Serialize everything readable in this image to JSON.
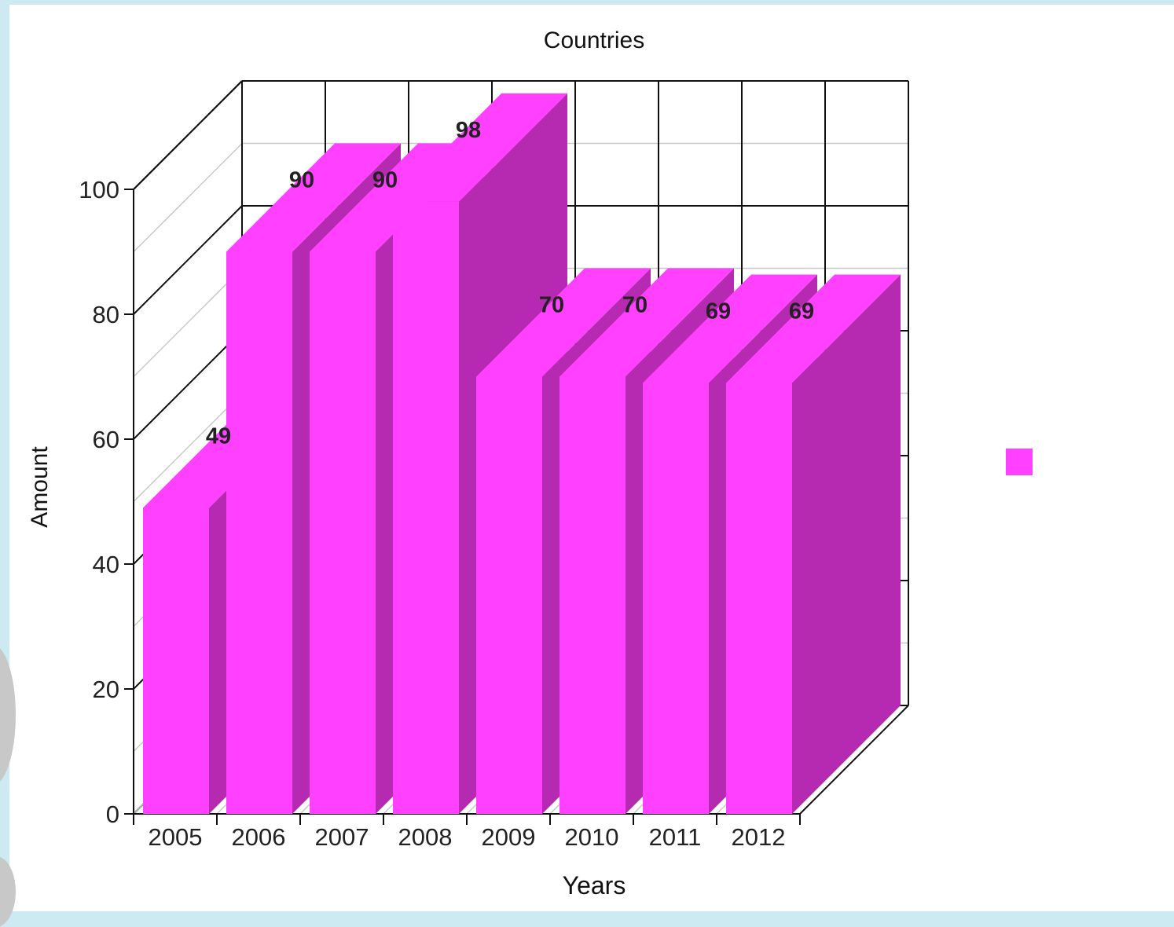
{
  "chart_data": {
    "type": "bar",
    "title": "Countries",
    "xlabel": "Years",
    "ylabel": "Amount",
    "categories": [
      "2005",
      "2006",
      "2007",
      "2008",
      "2009",
      "2010",
      "2011",
      "2012"
    ],
    "series": [
      {
        "values": [
          49,
          90,
          90,
          98,
          70,
          70,
          69,
          69
        ]
      }
    ],
    "data_labels": [
      "49",
      "90",
      "90",
      "98",
      "70",
      "70",
      "69",
      "69"
    ],
    "ylim": [
      0,
      100
    ],
    "yticks": [
      "0",
      "20",
      "40",
      "60",
      "80",
      "100"
    ],
    "grid": true,
    "legend_position": "right",
    "style": "3d",
    "colors": {
      "bar_front": "#ff40ff",
      "bar_side": "#b52ab0",
      "bar_top": "#ff40ff",
      "page_background": "#cdeaf3"
    }
  }
}
